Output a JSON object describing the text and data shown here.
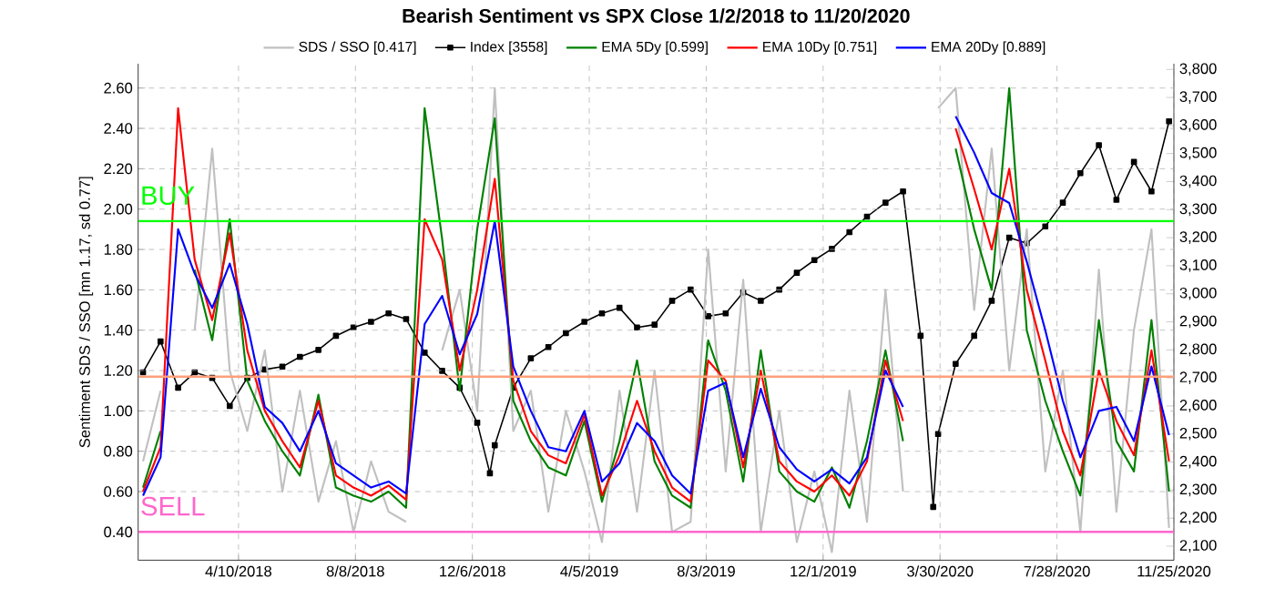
{
  "chart_data": {
    "type": "line",
    "title": "Bearish Sentiment vs SPX Close 1/2/2018 to 11/20/2020",
    "ylabel": "Sentiment SDS / SSO [mn 1.17, sd 0.77]",
    "x": [
      "2018-01-02",
      "2018-01-20",
      "2018-02-07",
      "2018-02-24",
      "2018-03-14",
      "2018-04-01",
      "2018-04-19",
      "2018-05-07",
      "2018-05-25",
      "2018-06-12",
      "2018-07-01",
      "2018-07-19",
      "2018-08-06",
      "2018-08-24",
      "2018-09-11",
      "2018-09-29",
      "2018-10-18",
      "2018-11-05",
      "2018-11-23",
      "2018-12-11",
      "2018-12-29",
      "2019-01-17",
      "2019-02-04",
      "2019-02-22",
      "2019-03-12",
      "2019-03-31",
      "2019-04-18",
      "2019-05-06",
      "2019-05-24",
      "2019-06-11",
      "2019-06-29",
      "2019-07-18",
      "2019-08-05",
      "2019-08-23",
      "2019-09-10",
      "2019-09-28",
      "2019-10-17",
      "2019-11-04",
      "2019-11-22",
      "2019-12-10",
      "2019-12-28",
      "2020-01-15",
      "2020-02-03",
      "2020-02-21",
      "2020-03-10",
      "2020-03-28",
      "2020-04-15",
      "2020-05-04",
      "2020-05-22",
      "2020-06-09",
      "2020-06-27",
      "2020-07-16",
      "2020-08-03",
      "2020-08-21",
      "2020-09-09",
      "2020-09-27",
      "2020-10-15",
      "2020-11-02",
      "2020-11-20"
    ],
    "series": [
      {
        "name": "SDS / SSO [0.417]",
        "color": "#c0c0c0",
        "values": [
          0.75,
          1.1,
          null,
          1.4,
          2.3,
          1.2,
          0.9,
          1.3,
          0.6,
          1.1,
          0.55,
          0.85,
          0.4,
          0.75,
          0.5,
          0.45,
          null,
          1.3,
          1.6,
          1.0,
          2.6,
          0.9,
          1.1,
          0.5,
          1.0,
          0.7,
          0.35,
          1.1,
          0.5,
          1.2,
          0.4,
          0.45,
          1.8,
          0.7,
          1.65,
          0.4,
          1.0,
          0.35,
          0.7,
          0.3,
          1.1,
          0.45,
          1.6,
          0.6,
          null,
          2.5,
          2.6,
          1.5,
          2.3,
          1.2,
          1.9,
          0.7,
          1.2,
          0.4,
          1.7,
          0.5,
          1.4,
          1.9,
          0.42
        ]
      },
      {
        "name": "Index [3558]",
        "color": "#000000",
        "axis": "y2",
        "marker": "square",
        "x": [
          "2018-01-02",
          "2018-01-20",
          "2018-02-07",
          "2018-02-24",
          "2018-03-14",
          "2018-04-01",
          "2018-04-19",
          "2018-05-07",
          "2018-05-25",
          "2018-06-12",
          "2018-07-01",
          "2018-07-19",
          "2018-08-06",
          "2018-08-24",
          "2018-09-11",
          "2018-09-29",
          "2018-10-18",
          "2018-11-05",
          "2018-11-23",
          "2018-12-11",
          "2018-12-24",
          "2018-12-29",
          "2019-01-17",
          "2019-02-04",
          "2019-02-22",
          "2019-03-12",
          "2019-03-31",
          "2019-04-18",
          "2019-05-06",
          "2019-05-24",
          "2019-06-11",
          "2019-06-29",
          "2019-07-18",
          "2019-08-05",
          "2019-08-23",
          "2019-09-10",
          "2019-09-28",
          "2019-10-17",
          "2019-11-04",
          "2019-11-22",
          "2019-12-10",
          "2019-12-28",
          "2020-01-15",
          "2020-02-03",
          "2020-02-21",
          "2020-03-10",
          "2020-03-23",
          "2020-03-28",
          "2020-04-15",
          "2020-05-04",
          "2020-05-22",
          "2020-06-09",
          "2020-06-27",
          "2020-07-16",
          "2020-08-03",
          "2020-08-21",
          "2020-09-09",
          "2020-09-27",
          "2020-10-15",
          "2020-11-02",
          "2020-11-20"
        ],
        "values": [
          2720,
          2830,
          2665,
          2720,
          2700,
          2600,
          2700,
          2730,
          2740,
          2775,
          2800,
          2850,
          2880,
          2900,
          2930,
          2910,
          2790,
          2725,
          2665,
          2540,
          2360,
          2460,
          2665,
          2770,
          2810,
          2860,
          2900,
          2930,
          2950,
          2880,
          2890,
          2975,
          3015,
          2920,
          2930,
          3005,
          2975,
          3015,
          3075,
          3120,
          3160,
          3220,
          3275,
          3325,
          3365,
          2850,
          2240,
          2500,
          2750,
          2850,
          2975,
          3200,
          3180,
          3240,
          3325,
          3430,
          3530,
          3335,
          3470,
          3365,
          3615
        ]
      },
      {
        "name": "EMA 5Dy [0.599]",
        "color": "#008000",
        "values": [
          0.62,
          0.9,
          null,
          1.7,
          1.35,
          1.95,
          1.15,
          0.95,
          0.8,
          0.68,
          1.08,
          0.62,
          0.58,
          0.55,
          0.6,
          0.52,
          2.5,
          1.85,
          1.1,
          1.9,
          2.45,
          1.05,
          0.85,
          0.72,
          0.68,
          0.95,
          0.55,
          0.85,
          1.25,
          0.75,
          0.58,
          0.52,
          1.35,
          1.1,
          0.65,
          1.3,
          0.7,
          0.6,
          0.55,
          0.72,
          0.52,
          0.85,
          1.3,
          0.85,
          null,
          null,
          2.3,
          1.9,
          1.6,
          2.6,
          1.4,
          1.05,
          0.8,
          0.58,
          1.45,
          0.85,
          0.7,
          1.45,
          0.6
        ]
      },
      {
        "name": "EMA 10Dy [0.751]",
        "color": "#ff0000",
        "values": [
          0.6,
          0.82,
          2.5,
          1.75,
          1.45,
          1.88,
          1.3,
          1.0,
          0.85,
          0.72,
          1.05,
          0.68,
          0.62,
          0.58,
          0.63,
          0.56,
          1.95,
          1.75,
          1.2,
          1.6,
          2.15,
          1.15,
          0.9,
          0.78,
          0.74,
          0.98,
          0.58,
          0.78,
          1.05,
          0.8,
          0.62,
          0.55,
          1.25,
          1.15,
          0.72,
          1.2,
          0.75,
          0.65,
          0.6,
          0.68,
          0.58,
          0.75,
          1.25,
          0.95,
          null,
          null,
          2.4,
          2.1,
          1.8,
          2.2,
          1.6,
          1.25,
          0.9,
          0.68,
          1.2,
          0.95,
          0.78,
          1.3,
          0.75
        ]
      },
      {
        "name": "EMA 20Dy [0.889]",
        "color": "#0000ff",
        "values": [
          0.58,
          0.77,
          1.9,
          1.68,
          1.51,
          1.73,
          1.43,
          1.02,
          0.94,
          0.8,
          1.0,
          0.74,
          0.68,
          0.62,
          0.65,
          0.59,
          1.43,
          1.57,
          1.28,
          1.48,
          1.94,
          1.22,
          1.0,
          0.82,
          0.8,
          1.0,
          0.65,
          0.74,
          0.94,
          0.85,
          0.68,
          0.59,
          1.1,
          1.14,
          0.77,
          1.11,
          0.82,
          0.71,
          0.65,
          0.71,
          0.64,
          0.77,
          1.2,
          1.02,
          null,
          null,
          2.46,
          2.28,
          2.08,
          2.03,
          1.74,
          1.4,
          1.05,
          0.77,
          1.0,
          1.02,
          0.85,
          1.22,
          0.88
        ]
      }
    ],
    "xlim": [
      "2017-12-28",
      "2020-11-25"
    ],
    "xticks": [
      {
        "value": "2018-04-10",
        "label": "4/10/2018"
      },
      {
        "value": "2018-08-08",
        "label": "8/8/2018"
      },
      {
        "value": "2018-12-06",
        "label": "12/6/2018"
      },
      {
        "value": "2019-04-05",
        "label": "4/5/2019"
      },
      {
        "value": "2019-08-03",
        "label": "8/3/2019"
      },
      {
        "value": "2019-12-01",
        "label": "12/1/2019"
      },
      {
        "value": "2020-03-30",
        "label": "3/30/2020"
      },
      {
        "value": "2020-07-28",
        "label": "7/28/2020"
      },
      {
        "value": "2020-11-25",
        "label": "11/25/2020"
      }
    ],
    "ylim": [
      0.26,
      2.72
    ],
    "yticks": [
      {
        "value": 0.4,
        "label": "0.40"
      },
      {
        "value": 0.6,
        "label": "0.60"
      },
      {
        "value": 0.8,
        "label": "0.80"
      },
      {
        "value": 1.0,
        "label": "1.00"
      },
      {
        "value": 1.2,
        "label": "1.20"
      },
      {
        "value": 1.4,
        "label": "1.40"
      },
      {
        "value": 1.6,
        "label": "1.60"
      },
      {
        "value": 1.8,
        "label": "1.80"
      },
      {
        "value": 2.0,
        "label": "2.00"
      },
      {
        "value": 2.2,
        "label": "2.20"
      },
      {
        "value": 2.4,
        "label": "2.40"
      },
      {
        "value": 2.6,
        "label": "2.60"
      }
    ],
    "y2lim": [
      2050,
      3820
    ],
    "y2ticks": [
      {
        "value": 2100,
        "label": "2,100"
      },
      {
        "value": 2200,
        "label": "2,200"
      },
      {
        "value": 2300,
        "label": "2,300"
      },
      {
        "value": 2400,
        "label": "2,400"
      },
      {
        "value": 2500,
        "label": "2,500"
      },
      {
        "value": 2600,
        "label": "2,600"
      },
      {
        "value": 2700,
        "label": "2,700"
      },
      {
        "value": 2800,
        "label": "2,800"
      },
      {
        "value": 2900,
        "label": "2,900"
      },
      {
        "value": 3000,
        "label": "3,000"
      },
      {
        "value": 3100,
        "label": "3,100"
      },
      {
        "value": 3200,
        "label": "3,200"
      },
      {
        "value": 3300,
        "label": "3,300"
      },
      {
        "value": 3400,
        "label": "3,400"
      },
      {
        "value": 3500,
        "label": "3,500"
      },
      {
        "value": 3600,
        "label": "3,600"
      },
      {
        "value": 3700,
        "label": "3,700"
      },
      {
        "value": 3800,
        "label": "3,800"
      }
    ],
    "ref_lines": [
      {
        "axis": "y",
        "value": 1.94,
        "label": "BUY",
        "color": "#00ff00"
      },
      {
        "axis": "y",
        "value": 1.17,
        "color": "#ffa07a"
      },
      {
        "axis": "y",
        "value": 0.4,
        "label": "SELL",
        "color": "#ff66cc"
      }
    ],
    "grid": true,
    "legend": "top"
  }
}
